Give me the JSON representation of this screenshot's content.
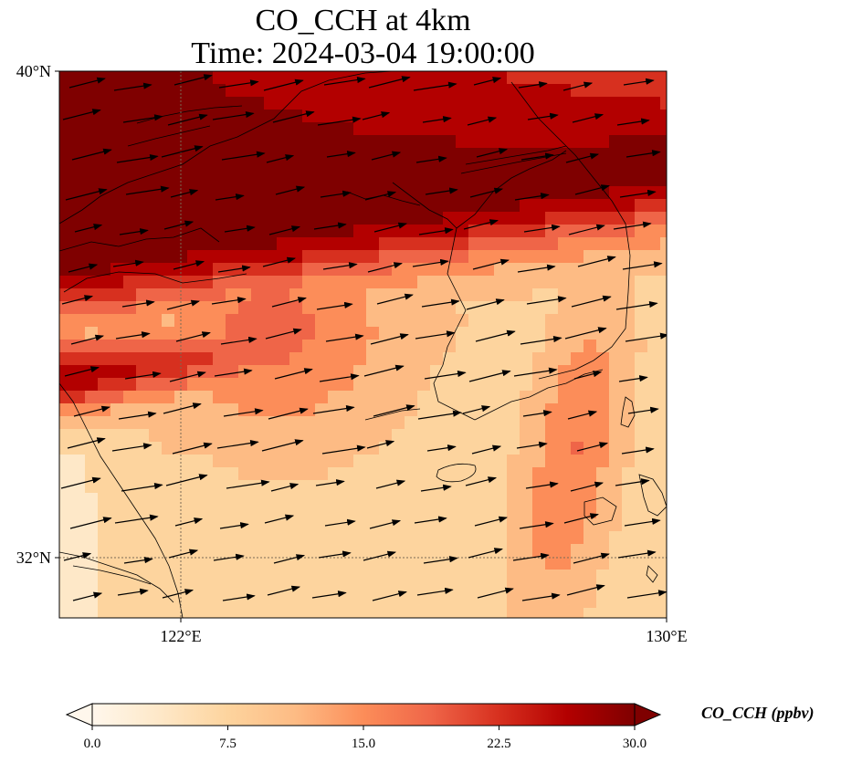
{
  "title_line1": "CO_CCH at 4km",
  "title_line2": "Time: 2024-03-04 19:00:00",
  "map": {
    "lon_range": [
      120,
      130
    ],
    "lat_range": [
      31,
      40
    ],
    "lat_labels": [
      {
        "value": 40,
        "text": "40°N"
      },
      {
        "value": 32,
        "text": "32°N"
      }
    ],
    "lon_labels": [
      {
        "value": 122,
        "text": "122°E"
      },
      {
        "value": 130,
        "text": "130°E"
      }
    ],
    "gridline_color": "#7a6a55",
    "coastline_color": "#000000"
  },
  "colorbar": {
    "title": "CO_CCH (ppbv)",
    "min": 0,
    "max": 30,
    "extend": "both",
    "tick_labels": [
      "0.0",
      "7.5",
      "15.0",
      "22.5",
      "30.0"
    ],
    "colormap": "OrRd",
    "colors": [
      "#fff7ec",
      "#fee8c8",
      "#fdd49e",
      "#fdbb84",
      "#fc8d59",
      "#ef6548",
      "#d7301f",
      "#b30000",
      "#7f0000"
    ]
  },
  "chart_data": {
    "type": "heatmap",
    "variable": "CO_CCH",
    "units": "ppbv",
    "field_description_levels": {
      "north_band_max": 30,
      "southwest_band": 28,
      "central_midlevels": 18,
      "southeast_plume": 17,
      "south_background": 8,
      "southwest_corner": 5
    },
    "wind_vectors": "predominantly westerly to west-southwesterly across domain"
  }
}
